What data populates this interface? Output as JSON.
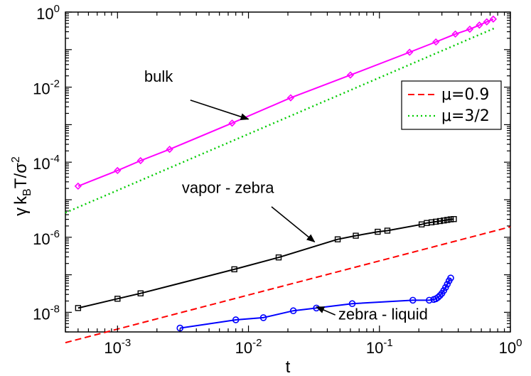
{
  "chart_data": {
    "type": "line",
    "xlabel": "t",
    "ylabel_parts": {
      "gamma": "γ",
      "k": "k",
      "k_sub": "B",
      "t": "T/σ",
      "sup": "2"
    },
    "x_scale": "log",
    "y_scale": "log",
    "xlim": [
      0.0004,
      1.0
    ],
    "ylim": [
      3e-09,
      1.0
    ],
    "grid": false,
    "legend_position": "top-right",
    "x_ticks": [
      {
        "value": 0.001,
        "base": "10",
        "exp": "-3"
      },
      {
        "value": 0.01,
        "base": "10",
        "exp": "-2"
      },
      {
        "value": 0.1,
        "base": "10",
        "exp": "-1"
      },
      {
        "value": 1.0,
        "base": "10",
        "exp": "0"
      }
    ],
    "y_ticks": [
      {
        "value": 1e-08,
        "base": "10",
        "exp": "-8"
      },
      {
        "value": 1e-06,
        "base": "10",
        "exp": "-6"
      },
      {
        "value": 0.0001,
        "base": "10",
        "exp": "-4"
      },
      {
        "value": 0.01,
        "base": "10",
        "exp": "-2"
      },
      {
        "value": 1.0,
        "base": "10",
        "exp": "0"
      }
    ],
    "series": [
      {
        "label": "bulk",
        "color": "#ff00ff",
        "marker": "diamond",
        "line_style": "solid",
        "x": [
          0.0005,
          0.001,
          0.0015,
          0.0025,
          0.0075,
          0.021,
          0.06,
          0.17,
          0.27,
          0.38,
          0.49,
          0.58,
          0.66,
          0.74
        ],
        "y": [
          2.3e-05,
          6e-05,
          0.00011,
          0.00022,
          0.0011,
          0.0052,
          0.021,
          0.085,
          0.16,
          0.26,
          0.35,
          0.45,
          0.55,
          0.65
        ]
      },
      {
        "label": "vapor - zebra",
        "color": "#000000",
        "marker": "square",
        "line_style": "solid",
        "x": [
          0.0005,
          0.001,
          0.0015,
          0.0078,
          0.017,
          0.048,
          0.066,
          0.097,
          0.115,
          0.21,
          0.23,
          0.25,
          0.27,
          0.29,
          0.31,
          0.33,
          0.35,
          0.37
        ],
        "y": [
          1.3e-08,
          2.3e-08,
          3.2e-08,
          1.4e-07,
          2.9e-07,
          8.8e-07,
          1.1e-06,
          1.4e-06,
          1.5e-06,
          2.2e-06,
          2.4e-06,
          2.5e-06,
          2.6e-06,
          2.7e-06,
          2.8e-06,
          2.9e-06,
          3e-06,
          3.05e-06
        ]
      },
      {
        "label": "zebra - liquid",
        "color": "#0000ff",
        "marker": "circle",
        "line_style": "solid",
        "x": [
          0.003,
          0.008,
          0.013,
          0.022,
          0.033,
          0.062,
          0.18,
          0.24,
          0.26,
          0.27,
          0.28,
          0.29,
          0.3,
          0.31,
          0.32,
          0.33,
          0.34,
          0.35
        ],
        "y": [
          3.8e-09,
          6.3e-09,
          7.2e-09,
          1.1e-08,
          1.3e-08,
          1.7e-08,
          2.1e-08,
          2.1e-08,
          2.2e-08,
          2.3e-08,
          2.5e-08,
          2.8e-08,
          3.2e-08,
          3.8e-08,
          4.6e-08,
          5.6e-08,
          6.9e-08,
          8.2e-08
        ]
      },
      {
        "label": "μ=0.9",
        "color": "#ff0000",
        "marker": "none",
        "line_style": "dashed",
        "x": [
          0.0004,
          1.0
        ],
        "y": [
          1.55e-09,
          1.9e-06
        ]
      },
      {
        "label": "μ=3/2",
        "color": "#00cc00",
        "marker": "none",
        "line_style": "dotted",
        "x": [
          0.0004,
          0.78
        ],
        "y": [
          4.5e-06,
          0.39
        ]
      }
    ],
    "legend": [
      {
        "label": "μ=0.9",
        "color": "#ff0000",
        "style": "dashed"
      },
      {
        "label": "μ=3/2",
        "color": "#00cc00",
        "style": "dotted"
      }
    ],
    "annotations": [
      {
        "text": "bulk",
        "text_at": [
          0.0016,
          0.014
        ],
        "arrow_from": [
          0.0036,
          0.0045
        ],
        "arrow_to": [
          0.01,
          0.0014
        ]
      },
      {
        "text": "vapor - zebra",
        "text_at": [
          0.0031,
          1.5e-05
        ],
        "arrow_from": [
          0.015,
          6.5e-06
        ],
        "arrow_to": [
          0.032,
          7.5e-07
        ]
      },
      {
        "text": "zebra - liquid",
        "text_at": [
          0.0485,
          6.5e-09
        ],
        "arrow_from": [
          0.046,
          8.5e-09
        ],
        "arrow_to": [
          0.033,
          1.4e-08
        ]
      }
    ]
  }
}
